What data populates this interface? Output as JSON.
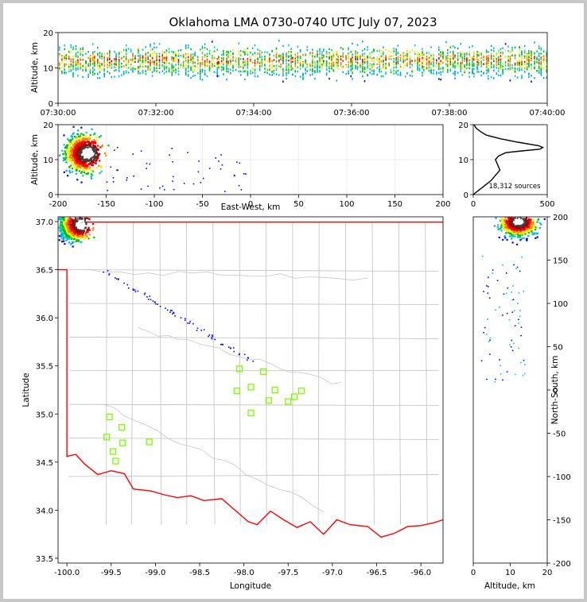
{
  "title": "Oklahoma LMA 0730-0740 UTC July 07, 2023",
  "colors": {
    "state_border": "#ff0000",
    "county_lines": "#c0c0c0",
    "stations": "#7cfc00"
  },
  "chart_data": [
    {
      "id": "time_height",
      "type": "heatmap",
      "xlabel": "",
      "ylabel": "Altitude, km",
      "x_ticks": [
        "07:30:00",
        "07:32:00",
        "07:34:00",
        "07:36:00",
        "07:38:00",
        "07:40:00"
      ],
      "ylim": [
        0,
        20
      ],
      "y_ticks": [
        "0",
        "10",
        "20"
      ]
    },
    {
      "id": "ew_altitude",
      "type": "heatmap",
      "xlabel": "East-West, km",
      "ylabel": "Altitude, km",
      "xlim": [
        -200,
        200
      ],
      "x_ticks": [
        "-200",
        "-150",
        "-100",
        "-50",
        "0",
        "50",
        "100",
        "150",
        "200"
      ],
      "ylim": [
        0,
        20
      ],
      "y_ticks": [
        "0",
        "10",
        "20"
      ]
    },
    {
      "id": "source_histogram",
      "type": "line",
      "xlim": [
        0,
        500
      ],
      "x_ticks": [
        "0",
        "500"
      ],
      "ylim": [
        0,
        20
      ],
      "y_ticks": [
        "0",
        "10",
        "20"
      ],
      "annotation": "18,312 sources",
      "profile": [
        [
          0,
          0
        ],
        [
          30,
          1
        ],
        [
          60,
          2
        ],
        [
          90,
          3
        ],
        [
          120,
          4
        ],
        [
          140,
          5
        ],
        [
          160,
          6
        ],
        [
          180,
          7
        ],
        [
          170,
          8
        ],
        [
          160,
          9
        ],
        [
          150,
          10
        ],
        [
          170,
          11
        ],
        [
          220,
          12
        ],
        [
          330,
          12.5
        ],
        [
          450,
          13
        ],
        [
          470,
          13.5
        ],
        [
          440,
          14
        ],
        [
          300,
          15
        ],
        [
          180,
          16
        ],
        [
          90,
          17
        ],
        [
          50,
          18
        ],
        [
          20,
          19
        ],
        [
          5,
          20
        ]
      ]
    },
    {
      "id": "plan_view",
      "type": "scatter",
      "xlabel": "Longitude",
      "ylabel": "Latitude",
      "xlim": [
        -100.1,
        -95.75
      ],
      "ylim": [
        33.45,
        37.05
      ],
      "x_ticks": [
        "-100.0",
        "-99.5",
        "-99.0",
        "-98.5",
        "-98.0",
        "-97.5",
        "-97.0",
        "-96.5",
        "-96.0"
      ],
      "y_ticks": [
        "33.5",
        "34.0",
        "34.5",
        "35.0",
        "35.5",
        "36.0",
        "36.5",
        "37.0"
      ],
      "stations": [
        [
          -99.52,
          34.97
        ],
        [
          -99.55,
          34.76
        ],
        [
          -99.38,
          34.86
        ],
        [
          -99.48,
          34.61
        ],
        [
          -99.45,
          34.51
        ],
        [
          -99.37,
          34.7
        ],
        [
          -99.07,
          34.71
        ],
        [
          -98.05,
          35.47
        ],
        [
          -98.08,
          35.24
        ],
        [
          -97.92,
          35.28
        ],
        [
          -97.78,
          35.44
        ],
        [
          -97.92,
          35.01
        ],
        [
          -97.72,
          35.14
        ],
        [
          -97.65,
          35.25
        ],
        [
          -97.43,
          35.18
        ],
        [
          -97.5,
          35.13
        ],
        [
          -97.35,
          35.24
        ]
      ]
    },
    {
      "id": "ns_altitude",
      "type": "heatmap",
      "xlabel": "Altitude, km",
      "ylabel": "North-South, km",
      "xlim": [
        0,
        20
      ],
      "x_ticks": [
        "0",
        "10",
        "20"
      ],
      "ylim": [
        -200,
        200
      ],
      "y_ticks": [
        "-200",
        "-150",
        "-100",
        "-50",
        "0",
        "50",
        "100",
        "150",
        "200"
      ]
    }
  ]
}
